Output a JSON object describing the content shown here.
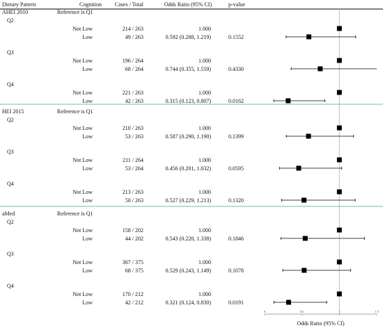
{
  "header": {
    "col_pattern": "Dietary Pattern",
    "col_cognition": "Cognition",
    "col_cases": "Cases / Total",
    "col_or": "Odds Ratio (95% CI)",
    "col_p": "p-value"
  },
  "colors": {
    "teal_divider": "#7fb5ad",
    "ref_line": "#9fd0a6",
    "marker": "#000000"
  },
  "chart_data": {
    "type": "forest",
    "xlabel": "Odds Ratio (95% CI)",
    "xlim": [
      0,
      1.5
    ],
    "x_ticks": [
      "0",
      "0.5",
      "1",
      "1.5"
    ],
    "reference_value": 1,
    "groups": [
      {
        "name": "AHEI 2010",
        "ref_note": "Reference is Q1",
        "quartiles": [
          {
            "label": "Q2",
            "rows": [
              {
                "cognition": "Not Low",
                "cases": "214 / 263",
                "or_text": "1.000",
                "or": 1.0,
                "p": ""
              },
              {
                "cognition": "Low",
                "cases": "49 / 263",
                "or_text": "0.592 (0.288, 1.219)",
                "or": 0.592,
                "lo": 0.288,
                "hi": 1.219,
                "p": "0.1552"
              }
            ]
          },
          {
            "label": "Q3",
            "rows": [
              {
                "cognition": "Not Low",
                "cases": "196 / 264",
                "or_text": "1.000",
                "or": 1.0,
                "p": ""
              },
              {
                "cognition": "Low",
                "cases": "68 / 264",
                "or_text": "0.744 (0.355, 1.559)",
                "or": 0.744,
                "lo": 0.355,
                "hi": 1.559,
                "p": "0.4330"
              }
            ]
          },
          {
            "label": "Q4",
            "rows": [
              {
                "cognition": "Not Low",
                "cases": "221 / 263",
                "or_text": "1.000",
                "or": 1.0,
                "p": ""
              },
              {
                "cognition": "Low",
                "cases": "42 / 263",
                "or_text": "0.315 (0.123, 0.807)",
                "or": 0.315,
                "lo": 0.123,
                "hi": 0.807,
                "p": "0.0162"
              }
            ]
          }
        ]
      },
      {
        "name": "HEI 2015",
        "ref_note": "Reference is Q1",
        "quartiles": [
          {
            "label": "Q2",
            "rows": [
              {
                "cognition": "Not Low",
                "cases": "210 / 263",
                "or_text": "1.000",
                "or": 1.0,
                "p": ""
              },
              {
                "cognition": "Low",
                "cases": "53 / 263",
                "or_text": "0.587 (0.290, 1.190)",
                "or": 0.587,
                "lo": 0.29,
                "hi": 1.19,
                "p": "0.1399"
              }
            ]
          },
          {
            "label": "Q3",
            "rows": [
              {
                "cognition": "Not Low",
                "cases": "211 / 264",
                "or_text": "1.000",
                "or": 1.0,
                "p": ""
              },
              {
                "cognition": "Low",
                "cases": "53 / 264",
                "or_text": "0.456 (0.201, 1.032)",
                "or": 0.456,
                "lo": 0.201,
                "hi": 1.032,
                "p": "0.0595"
              }
            ]
          },
          {
            "label": "Q4",
            "rows": [
              {
                "cognition": "Not Low",
                "cases": "213 / 263",
                "or_text": "1.000",
                "or": 1.0,
                "p": ""
              },
              {
                "cognition": "Low",
                "cases": "50 / 263",
                "or_text": "0.527 (0.229, 1.213)",
                "or": 0.527,
                "lo": 0.229,
                "hi": 1.213,
                "p": "0.1320"
              }
            ]
          }
        ]
      },
      {
        "name": "aMed",
        "ref_note": "Reference is Q1",
        "quartiles": [
          {
            "label": "Q2",
            "rows": [
              {
                "cognition": "Not Low",
                "cases": "158 / 202",
                "or_text": "1.000",
                "or": 1.0,
                "p": ""
              },
              {
                "cognition": "Low",
                "cases": "44 / 202",
                "or_text": "0.543 (0.220, 1.338)",
                "or": 0.543,
                "lo": 0.22,
                "hi": 1.338,
                "p": "0.1846"
              }
            ]
          },
          {
            "label": "Q3",
            "rows": [
              {
                "cognition": "Not Low",
                "cases": "307 / 375",
                "or_text": "1.000",
                "or": 1.0,
                "p": ""
              },
              {
                "cognition": "Low",
                "cases": "68 / 375",
                "or_text": "0.529 (0.243, 1.149)",
                "or": 0.529,
                "lo": 0.243,
                "hi": 1.149,
                "p": "0.1078"
              }
            ]
          },
          {
            "label": "Q4",
            "rows": [
              {
                "cognition": "Not Low",
                "cases": "170 / 212",
                "or_text": "1.000",
                "or": 1.0,
                "p": ""
              },
              {
                "cognition": "Low",
                "cases": "42 / 212",
                "or_text": "0.321 (0.124, 0.830)",
                "or": 0.321,
                "lo": 0.124,
                "hi": 0.83,
                "p": "0.0191"
              }
            ]
          }
        ]
      }
    ]
  }
}
